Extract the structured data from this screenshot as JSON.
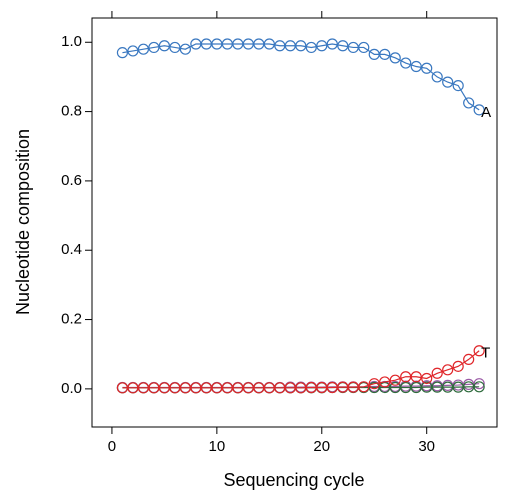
{
  "chart_data": {
    "type": "line",
    "x_label": "Sequencing cycle",
    "y_label": "Nucleotide composition",
    "x": [
      1,
      2,
      3,
      4,
      5,
      6,
      7,
      8,
      9,
      10,
      11,
      12,
      13,
      14,
      15,
      16,
      17,
      18,
      19,
      20,
      21,
      22,
      23,
      24,
      25,
      26,
      27,
      28,
      29,
      30,
      31,
      32,
      33,
      34,
      35
    ],
    "series": [
      {
        "name": "A",
        "color": "#3a78c0",
        "values": [
          0.97,
          0.975,
          0.98,
          0.985,
          0.99,
          0.985,
          0.98,
          0.995,
          0.995,
          0.995,
          0.995,
          0.995,
          0.995,
          0.995,
          0.995,
          0.99,
          0.99,
          0.99,
          0.985,
          0.99,
          0.995,
          0.99,
          0.985,
          0.985,
          0.965,
          0.965,
          0.955,
          0.94,
          0.93,
          0.925,
          0.9,
          0.885,
          0.875,
          0.825,
          0.805
        ]
      },
      {
        "color": "#9b5aa6",
        "values": [
          0.004,
          0.004,
          0.004,
          0.004,
          0.004,
          0.004,
          0.004,
          0.004,
          0.004,
          0.004,
          0.004,
          0.004,
          0.004,
          0.004,
          0.004,
          0.004,
          0.005,
          0.005,
          0.005,
          0.005,
          0.006,
          0.006,
          0.006,
          0.006,
          0.007,
          0.007,
          0.007,
          0.008,
          0.008,
          0.009,
          0.009,
          0.01,
          0.011,
          0.013,
          0.015
        ]
      },
      {
        "color": "#2e6b3c",
        "values": [
          0.003,
          0.003,
          0.003,
          0.003,
          0.003,
          0.003,
          0.003,
          0.003,
          0.003,
          0.003,
          0.003,
          0.003,
          0.003,
          0.003,
          0.003,
          0.003,
          0.003,
          0.003,
          0.003,
          0.003,
          0.004,
          0.004,
          0.004,
          0.004,
          0.004,
          0.004,
          0.004,
          0.004,
          0.004,
          0.005,
          0.005,
          0.005,
          0.005,
          0.006,
          0.006
        ]
      },
      {
        "name": "T",
        "color": "#e0262a",
        "values": [
          0.003,
          0.003,
          0.003,
          0.003,
          0.003,
          0.003,
          0.003,
          0.003,
          0.003,
          0.003,
          0.003,
          0.003,
          0.003,
          0.003,
          0.003,
          0.003,
          0.003,
          0.003,
          0.004,
          0.004,
          0.004,
          0.005,
          0.005,
          0.006,
          0.015,
          0.02,
          0.025,
          0.035,
          0.035,
          0.03,
          0.045,
          0.055,
          0.065,
          0.085,
          0.11
        ]
      }
    ],
    "xlim": [
      -1.9,
      36.7
    ],
    "xticks": [
      0,
      10,
      20,
      30
    ],
    "ylim": [
      -0.11,
      1.07
    ],
    "yticks": [
      {
        "value": 0,
        "label": "0.0"
      },
      0.2,
      0.4,
      0.6,
      0.8,
      {
        "value": 1,
        "label": "1.0"
      }
    ]
  }
}
